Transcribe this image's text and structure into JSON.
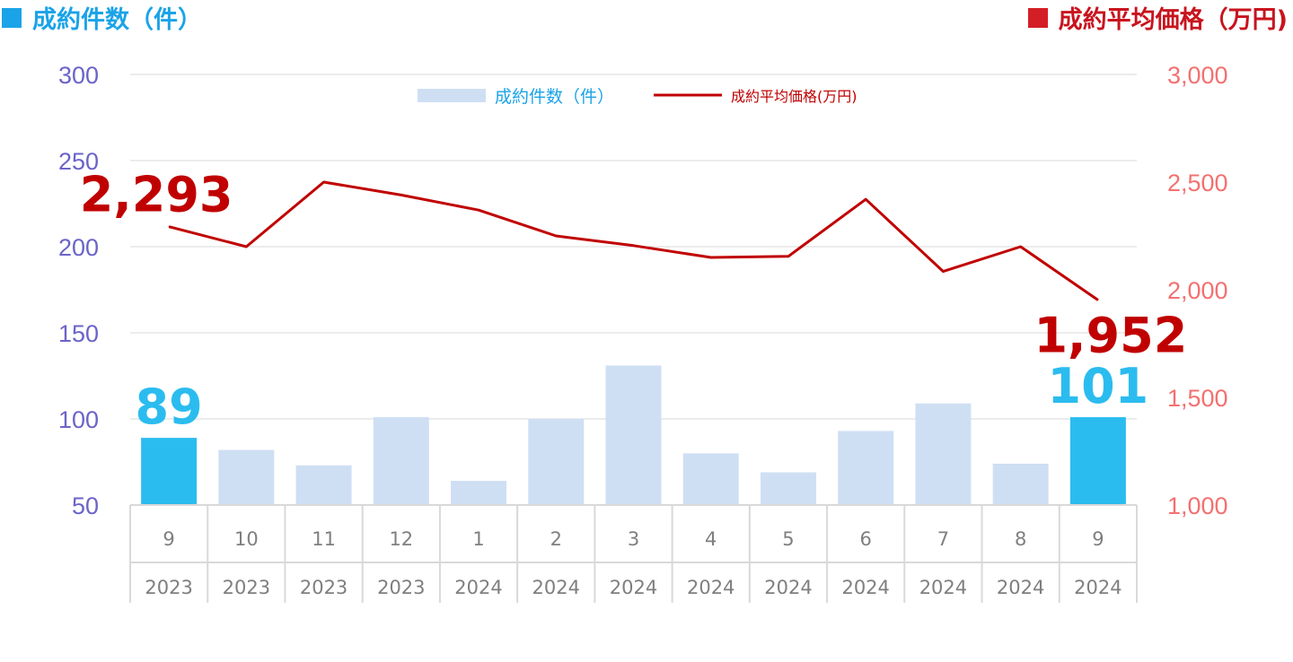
{
  "titles": {
    "left": "成約件数（件）",
    "right": "成約平均価格（万円)"
  },
  "colors": {
    "bar": "#cfdff3",
    "bar_highlight": "#2bbcef",
    "line": "#c00000",
    "left_axis": "#6b64c8",
    "right_axis": "#f47070",
    "left_title": "#1aa3e8",
    "right_title": "#c8141e"
  },
  "chart_data": {
    "type": "bar",
    "categories": [
      [
        "9",
        "2023"
      ],
      [
        "10",
        "2023"
      ],
      [
        "11",
        "2023"
      ],
      [
        "12",
        "2023"
      ],
      [
        "1",
        "2024"
      ],
      [
        "2",
        "2024"
      ],
      [
        "3",
        "2024"
      ],
      [
        "4",
        "2024"
      ],
      [
        "5",
        "2024"
      ],
      [
        "6",
        "2024"
      ],
      [
        "7",
        "2024"
      ],
      [
        "8",
        "2024"
      ],
      [
        "9",
        "2024"
      ]
    ],
    "series": [
      {
        "name": "成約件数（件）",
        "type": "bar",
        "axis": "left",
        "values": [
          89,
          82,
          73,
          101,
          64,
          100,
          131,
          80,
          69,
          93,
          109,
          74,
          101
        ],
        "highlight_indices": [
          0,
          12
        ]
      },
      {
        "name": "成約平均価格(万円)",
        "type": "line",
        "axis": "right",
        "values": [
          2293,
          2200,
          2500,
          2440,
          2370,
          2250,
          2205,
          2150,
          2155,
          2420,
          2085,
          2200,
          1952
        ]
      }
    ],
    "y_left": {
      "lim": [
        50,
        300
      ],
      "ticks": [
        "50",
        "100",
        "150",
        "200",
        "250",
        "300"
      ]
    },
    "y_right": {
      "lim": [
        1000,
        3000
      ],
      "ticks": [
        "1,000",
        "1,500",
        "2,000",
        "2,500",
        "3,000"
      ]
    },
    "data_labels": [
      {
        "series": "成約件数（件）",
        "index": 0,
        "text": "89"
      },
      {
        "series": "成約件数（件）",
        "index": 12,
        "text": "101"
      },
      {
        "series": "成約平均価格(万円)",
        "index": 0,
        "text": "2,293"
      },
      {
        "series": "成約平均価格(万円)",
        "index": 12,
        "text": "1,952"
      }
    ],
    "legend": "top-center",
    "grid": true
  }
}
